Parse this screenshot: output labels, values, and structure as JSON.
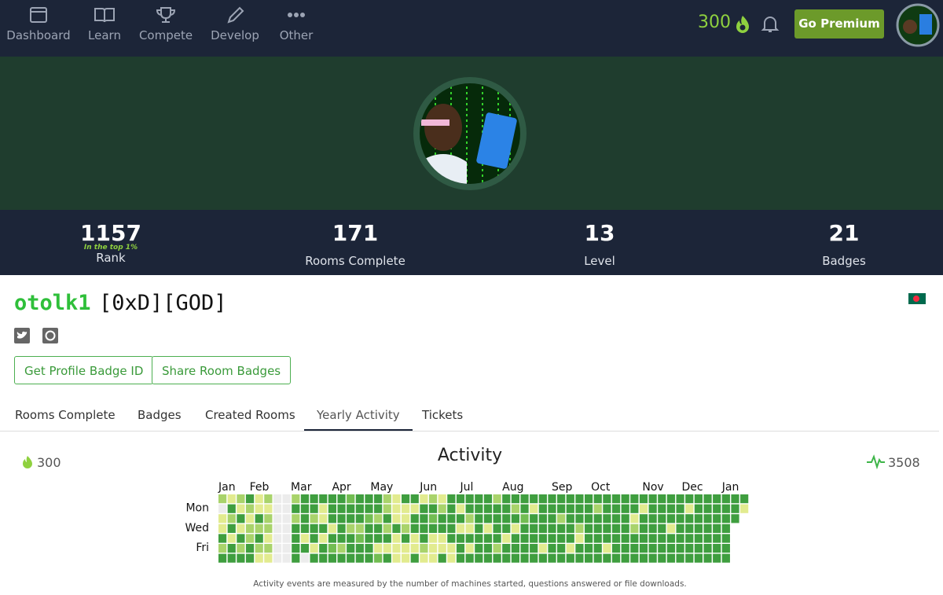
{
  "nav": {
    "items": [
      {
        "label": "Dashboard"
      },
      {
        "label": "Learn"
      },
      {
        "label": "Compete"
      },
      {
        "label": "Develop"
      },
      {
        "label": "Other"
      }
    ],
    "streak": 300,
    "premium": "Go Premium"
  },
  "stats": [
    {
      "value": 1157,
      "note": "In the top 1%",
      "label": "Rank"
    },
    {
      "value": 171,
      "label": "Rooms Complete"
    },
    {
      "value": 13,
      "label": "Level"
    },
    {
      "value": 21,
      "label": "Badges"
    }
  ],
  "profile": {
    "username": "otolk1",
    "tag": "[0xD][GOD]",
    "buttons": [
      "Get Profile Badge ID",
      "Share Room Badges"
    ],
    "tabs": [
      "Rooms Complete",
      "Badges",
      "Created Rooms",
      "Yearly Activity",
      "Tickets"
    ],
    "active_tab": 3
  },
  "activity": {
    "title": "Activity",
    "streak": 300,
    "total": 3508,
    "months": [
      "Jan",
      "Feb",
      "Mar",
      "Apr",
      "May",
      "Jun",
      "Jul",
      "Aug",
      "Sep",
      "Oct",
      "Nov",
      "Dec",
      "Jan"
    ],
    "days": [
      "Mon",
      "Wed",
      "Fri"
    ],
    "level_colors": [
      "#ececec",
      "#e2eb8f",
      "#a9d36b",
      "#72bd52",
      "#3f9e3f"
    ],
    "levels": [
      [
        2,
        1,
        2,
        4,
        1,
        2,
        0,
        0,
        2,
        4,
        4,
        4,
        4,
        4,
        3,
        4,
        4,
        4,
        2,
        1,
        4,
        4,
        1,
        2,
        1,
        4,
        4,
        4,
        4,
        4,
        2,
        4,
        4,
        4,
        4,
        4,
        4,
        4,
        4,
        4,
        4,
        4,
        4,
        4,
        4,
        4,
        4,
        4,
        4,
        4,
        4,
        4,
        4,
        4,
        4,
        4,
        4,
        4
      ],
      [
        0,
        4,
        1,
        2,
        1,
        1,
        0,
        0,
        4,
        4,
        4,
        1,
        4,
        4,
        4,
        4,
        4,
        4,
        2,
        1,
        1,
        1,
        4,
        4,
        2,
        4,
        1,
        4,
        4,
        4,
        4,
        4,
        2,
        4,
        1,
        4,
        4,
        4,
        4,
        4,
        4,
        2,
        4,
        4,
        4,
        4,
        1,
        4,
        4,
        4,
        4,
        1,
        4,
        4,
        4,
        4,
        4,
        1
      ],
      [
        1,
        2,
        4,
        1,
        4,
        2,
        0,
        0,
        2,
        4,
        2,
        1,
        4,
        4,
        4,
        4,
        3,
        2,
        4,
        1,
        1,
        4,
        4,
        3,
        4,
        4,
        4,
        2,
        4,
        4,
        4,
        4,
        4,
        3,
        4,
        4,
        4,
        2,
        4,
        4,
        4,
        4,
        4,
        4,
        4,
        1,
        4,
        4,
        4,
        4,
        4,
        4,
        4,
        4,
        4,
        4,
        4,
        null
      ],
      [
        1,
        4,
        1,
        2,
        2,
        2,
        0,
        0,
        4,
        4,
        4,
        4,
        1,
        4,
        2,
        2,
        4,
        4,
        2,
        4,
        2,
        4,
        4,
        4,
        4,
        4,
        1,
        1,
        4,
        1,
        4,
        4,
        1,
        4,
        4,
        4,
        4,
        4,
        4,
        2,
        4,
        4,
        4,
        4,
        4,
        2,
        4,
        4,
        4,
        1,
        4,
        4,
        4,
        4,
        4,
        4,
        null,
        null
      ],
      [
        4,
        1,
        4,
        2,
        4,
        1,
        0,
        0,
        4,
        1,
        4,
        1,
        4,
        4,
        4,
        3,
        4,
        4,
        4,
        1,
        4,
        1,
        4,
        1,
        1,
        4,
        4,
        4,
        4,
        4,
        4,
        1,
        4,
        4,
        4,
        4,
        4,
        4,
        4,
        1,
        4,
        4,
        4,
        4,
        4,
        4,
        4,
        4,
        4,
        4,
        4,
        4,
        4,
        4,
        4,
        4,
        null,
        null
      ],
      [
        2,
        4,
        2,
        4,
        2,
        2,
        0,
        0,
        4,
        4,
        1,
        4,
        3,
        2,
        4,
        4,
        4,
        1,
        1,
        1,
        1,
        1,
        2,
        1,
        1,
        1,
        4,
        1,
        4,
        4,
        2,
        4,
        4,
        4,
        4,
        1,
        4,
        4,
        1,
        4,
        4,
        4,
        1,
        4,
        4,
        4,
        4,
        4,
        4,
        4,
        4,
        4,
        4,
        4,
        4,
        4,
        null,
        null
      ],
      [
        4,
        4,
        4,
        4,
        1,
        1,
        0,
        0,
        4,
        0,
        4,
        4,
        4,
        4,
        4,
        4,
        4,
        3,
        4,
        1,
        1,
        4,
        1,
        1,
        4,
        1,
        4,
        4,
        4,
        4,
        4,
        4,
        4,
        4,
        4,
        4,
        4,
        4,
        4,
        4,
        4,
        4,
        4,
        4,
        4,
        4,
        4,
        4,
        4,
        4,
        4,
        4,
        4,
        4,
        4,
        4,
        null,
        null
      ]
    ],
    "footnote": "Activity events are measured by the number of machines started, questions answered or file downloads."
  }
}
